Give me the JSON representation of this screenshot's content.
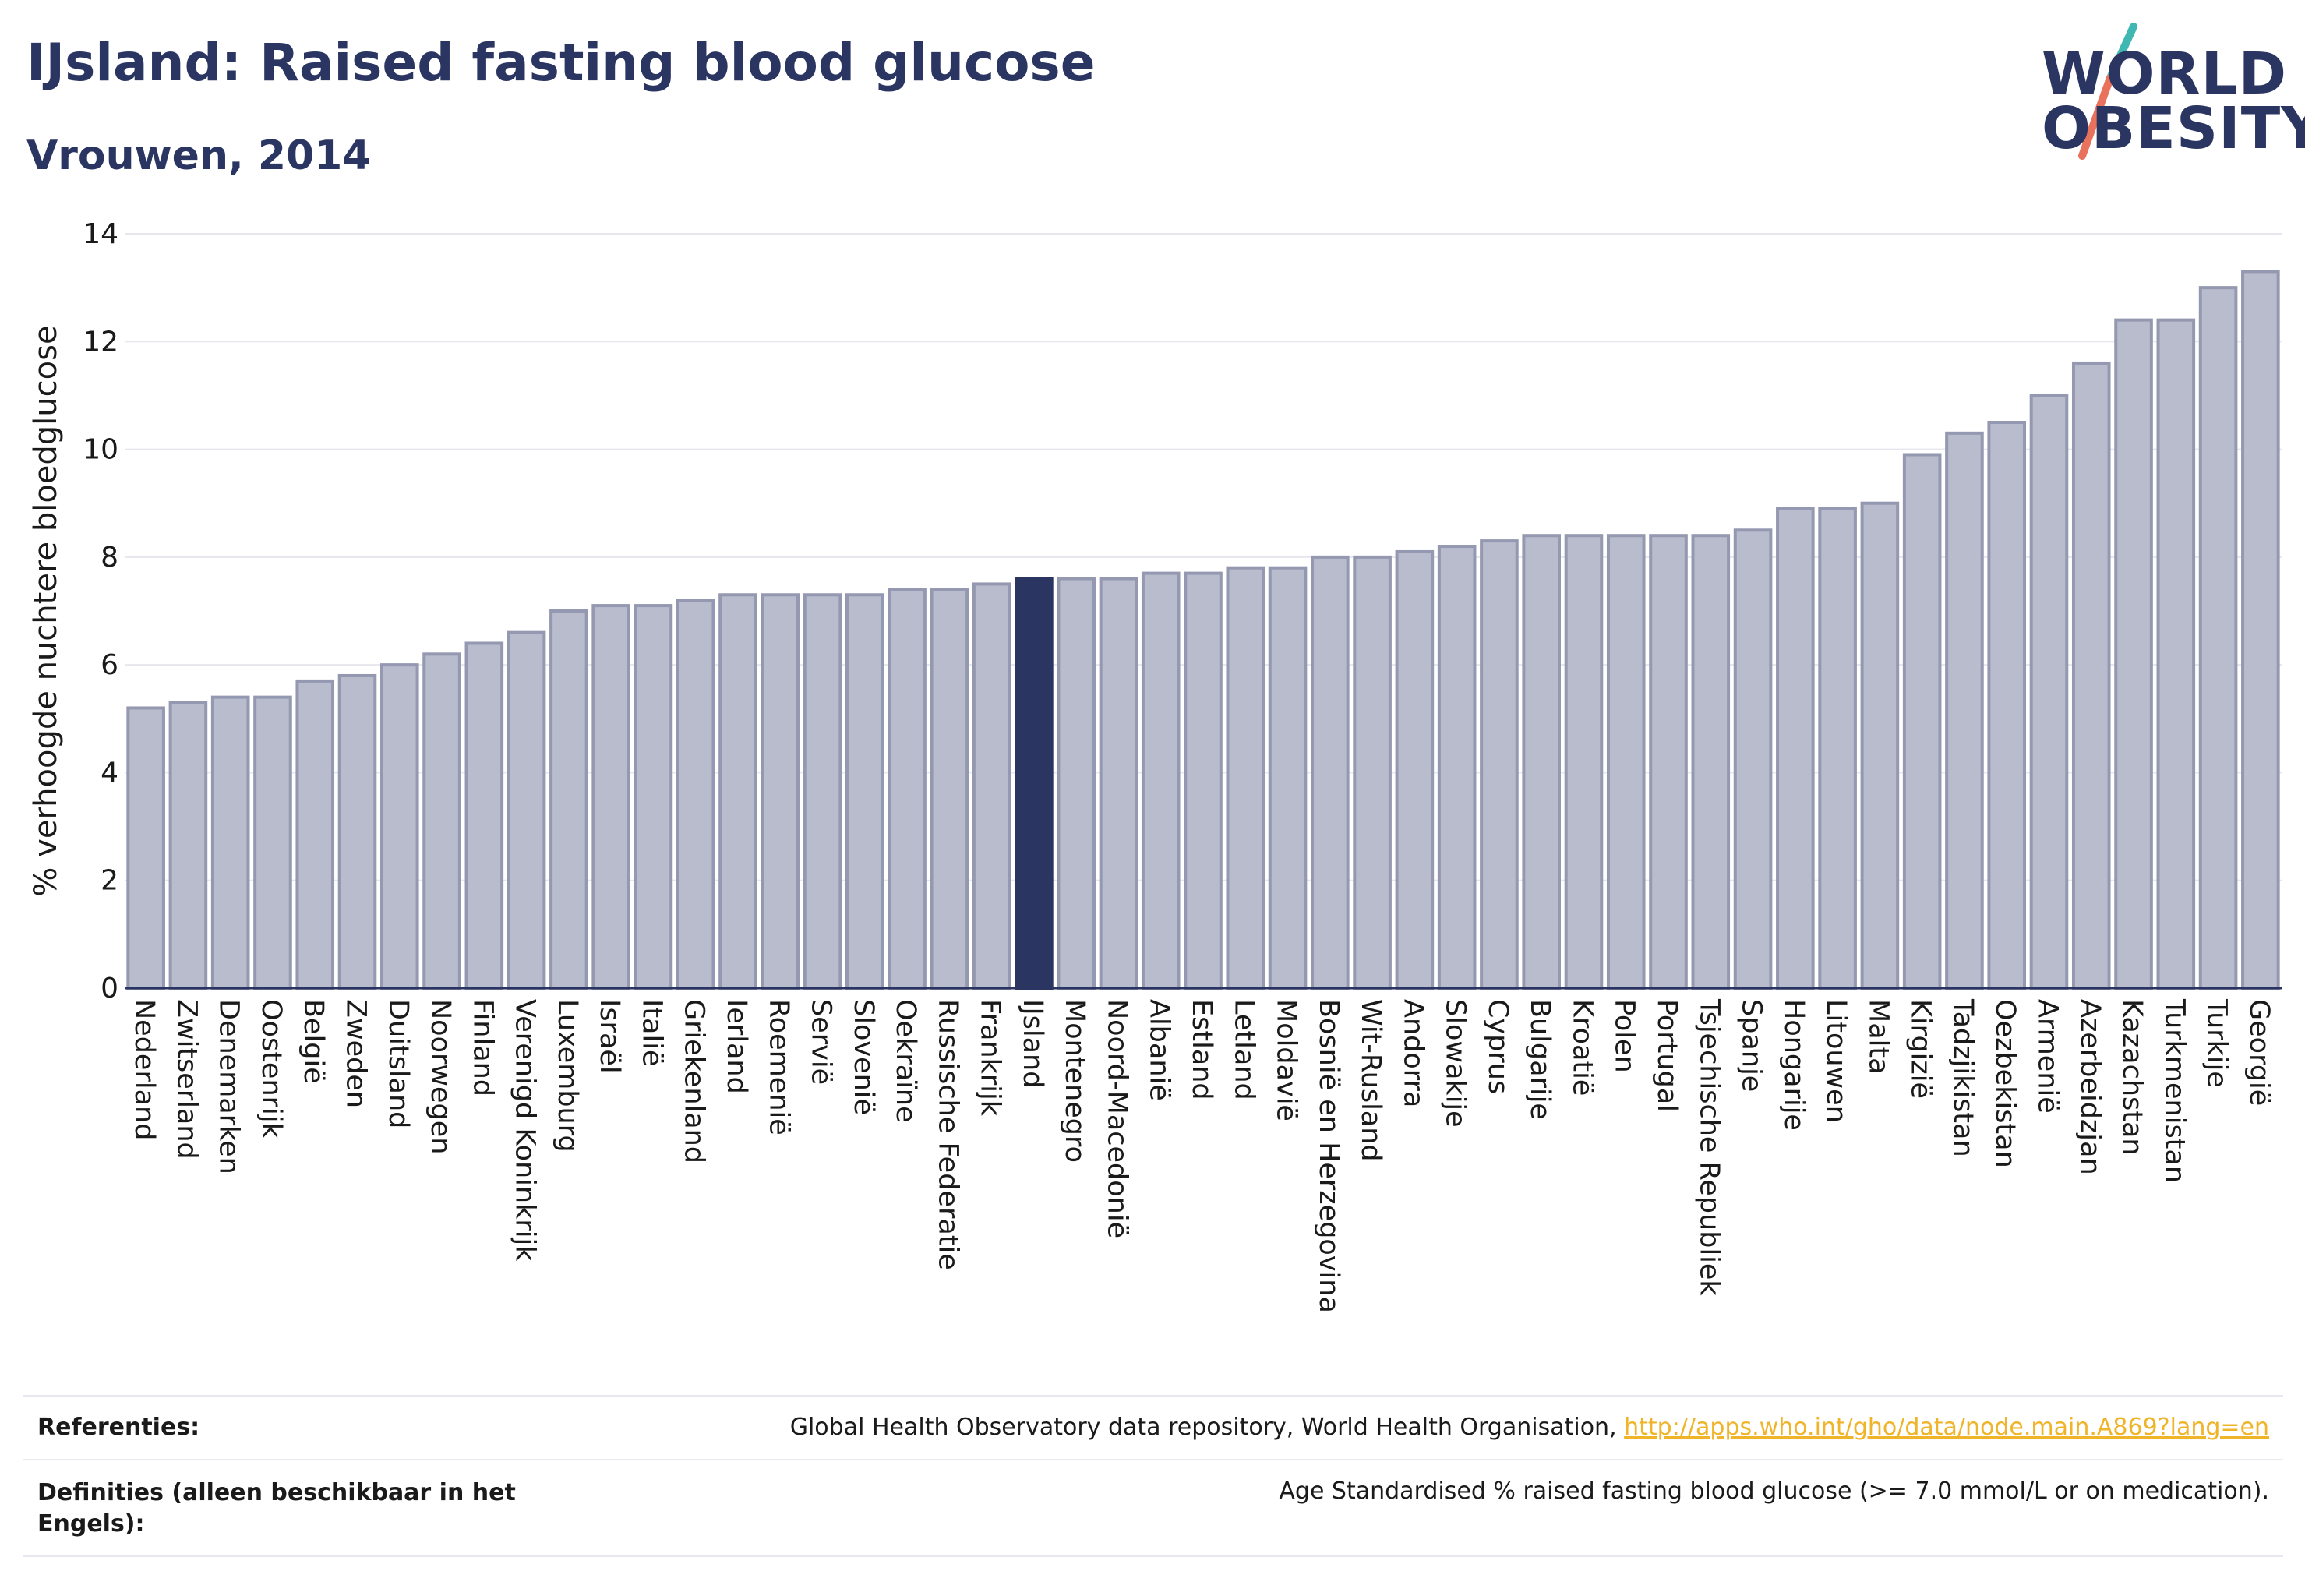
{
  "header": {
    "title": "IJsland: Raised fasting blood glucose",
    "subtitle": "Vrouwen, 2014"
  },
  "logo": {
    "line1": "WORLD",
    "line2": "OBESITY",
    "accent_color": "#3fb8b4",
    "accent_color2": "#e8725c"
  },
  "chart_data": {
    "type": "bar",
    "title": "IJsland: Raised fasting blood glucose",
    "subtitle": "Vrouwen, 2014",
    "xlabel": "",
    "ylabel": "% verhoogde nuchtere bloedglucose",
    "ylim": [
      0,
      14
    ],
    "yticks": [
      0,
      2,
      4,
      6,
      8,
      10,
      12,
      14
    ],
    "grid": true,
    "highlight": "IJsland",
    "colors": {
      "bar": "#b8bccc",
      "bar_border": "#9498b0",
      "highlight": "#2b3561"
    },
    "categories": [
      "Nederland",
      "Zwitserland",
      "Denemarken",
      "Oostenrijk",
      "België",
      "Zweden",
      "Duitsland",
      "Noorwegen",
      "Finland",
      "Verenigd Koninkrijk",
      "Luxemburg",
      "Israël",
      "Italië",
      "Griekenland",
      "Ierland",
      "Roemenië",
      "Servië",
      "Slovenië",
      "Oekraïne",
      "Russische Federatie",
      "Frankrijk",
      "IJsland",
      "Montenegro",
      "Noord-Macedonië",
      "Albanië",
      "Estland",
      "Letland",
      "Moldavië",
      "Bosnië en Herzegovina",
      "Wit-Rusland",
      "Andorra",
      "Slowakije",
      "Cyprus",
      "Bulgarije",
      "Kroatië",
      "Polen",
      "Portugal",
      "Tsjechische Republiek",
      "Spanje",
      "Hongarije",
      "Litouwen",
      "Malta",
      "Kirgizië",
      "Tadzjikistan",
      "Oezbekistan",
      "Armenië",
      "Azerbeidzjan",
      "Kazachstan",
      "Turkmenistan",
      "Turkije",
      "Georgië"
    ],
    "values": [
      5.2,
      5.3,
      5.4,
      5.4,
      5.7,
      5.8,
      6.0,
      6.2,
      6.4,
      6.6,
      7.0,
      7.1,
      7.1,
      7.2,
      7.3,
      7.3,
      7.3,
      7.3,
      7.4,
      7.4,
      7.5,
      7.6,
      7.6,
      7.6,
      7.7,
      7.7,
      7.8,
      7.8,
      8.0,
      8.0,
      8.1,
      8.2,
      8.3,
      8.4,
      8.4,
      8.4,
      8.4,
      8.4,
      8.5,
      8.9,
      8.9,
      9.0,
      9.9,
      10.3,
      10.5,
      11.0,
      11.6,
      12.4,
      12.4,
      13.0,
      13.3
    ]
  },
  "footer": {
    "references_label": "Referenties:",
    "references_text": "Global Health Observatory data repository, World Health Organisation, ",
    "references_link": "http://apps.who.int/gho/data/node.main.A869?lang=en",
    "definitions_label": "Definities (alleen beschikbaar in het Engels):",
    "definitions_text": "Age Standardised % raised fasting blood glucose (>= 7.0 mmol/L or on medication)."
  }
}
